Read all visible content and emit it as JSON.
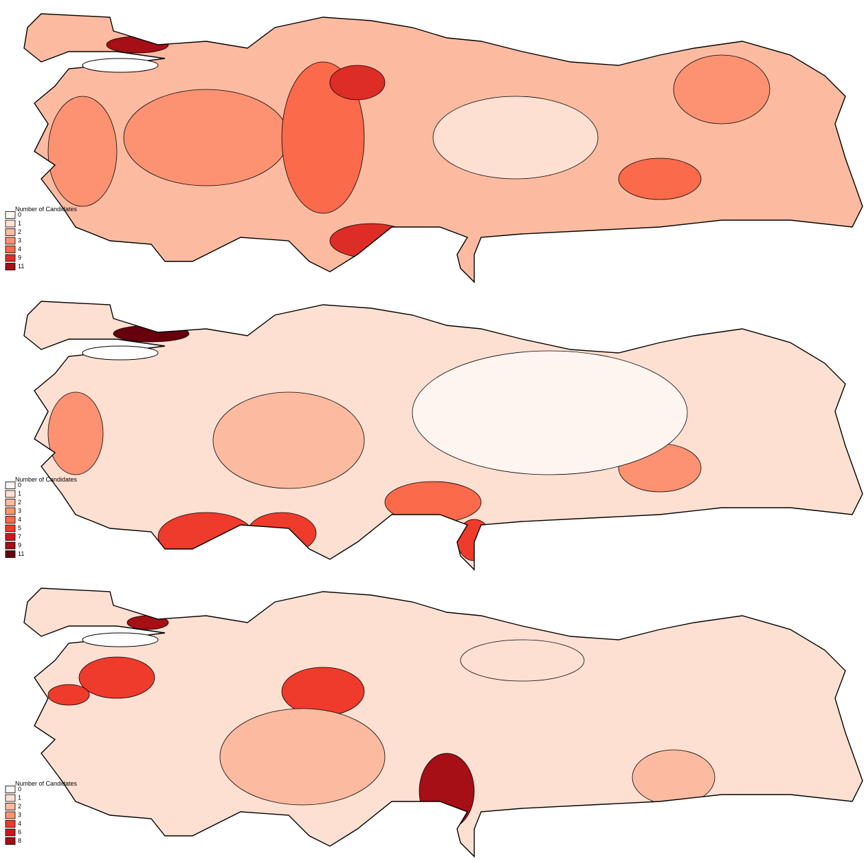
{
  "maps": [
    {
      "legend": {
        "title": "Number of Candidates",
        "items": [
          {
            "value": 0,
            "color": "#fff5f0"
          },
          {
            "value": 1,
            "color": "#fee0d2"
          },
          {
            "value": 2,
            "color": "#fcbba1"
          },
          {
            "value": 3,
            "color": "#fc9272"
          },
          {
            "value": 4,
            "color": "#fb6a4a"
          },
          {
            "value": 9,
            "color": "#de2d26"
          },
          {
            "value": 11,
            "color": "#a50f15"
          }
        ]
      }
    },
    {
      "legend": {
        "title": "Number of Candidates",
        "items": [
          {
            "value": 0,
            "color": "#fff5f0"
          },
          {
            "value": 1,
            "color": "#fee0d2"
          },
          {
            "value": 2,
            "color": "#fcbba1"
          },
          {
            "value": 3,
            "color": "#fc9272"
          },
          {
            "value": 4,
            "color": "#fb6a4a"
          },
          {
            "value": 5,
            "color": "#ef3b2c"
          },
          {
            "value": 7,
            "color": "#cb181d"
          },
          {
            "value": 9,
            "color": "#a50f15"
          },
          {
            "value": 11,
            "color": "#67000d"
          }
        ]
      }
    },
    {
      "legend": {
        "title": "Number of Candidates",
        "items": [
          {
            "value": 0,
            "color": "#fff5f0"
          },
          {
            "value": 1,
            "color": "#fee0d2"
          },
          {
            "value": 2,
            "color": "#fcbba1"
          },
          {
            "value": 3,
            "color": "#fc9272"
          },
          {
            "value": 4,
            "color": "#ef3b2c"
          },
          {
            "value": 6,
            "color": "#cb181d"
          },
          {
            "value": 8,
            "color": "#a50f15"
          }
        ]
      }
    }
  ]
}
